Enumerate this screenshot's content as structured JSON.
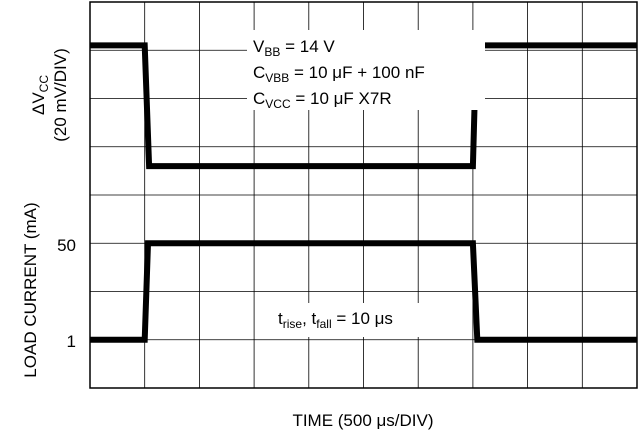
{
  "chart_data": {
    "type": "line",
    "title": "",
    "xlabel": "TIME (500 μs/DIV)",
    "divisions": {
      "x": 10,
      "y": 8
    },
    "upper_axis": {
      "label_line1": "ΔV",
      "label_line1_sub": "CC",
      "label_line2": "(20 mV/DIV)"
    },
    "lower_axis": {
      "label": "LOAD CURRENT (mA)",
      "ticks": [
        "50",
        "1"
      ],
      "tick_values": [
        50,
        1
      ]
    },
    "annotations": {
      "vbb": {
        "main": "V",
        "sub": "BB",
        "rest": " = 14 V"
      },
      "cvbb": {
        "main": "C",
        "sub": "VBB",
        "rest": " = 10 μF + 100 nF"
      },
      "cvcc": {
        "main": "C",
        "sub": "VCC",
        "rest": " = 10 μF X7R"
      },
      "trise": {
        "t1": "t",
        "s1": "rise",
        "sep": ", ",
        "t2": "t",
        "s2": "fall",
        "rest": " = 10 μs"
      }
    },
    "series": [
      {
        "name": "",
        "units": "div",
        "x": [
          0,
          1.0,
          1.08,
          7.0,
          7.06,
          10
        ],
        "y": [
          7.1,
          7.1,
          4.6,
          4.6,
          7.1,
          7.1
        ]
      },
      {
        "name": "",
        "units": "mA",
        "x": [
          0,
          1.0,
          1.06,
          7.0,
          7.08,
          10
        ],
        "y": [
          1,
          1,
          50,
          50,
          1,
          1
        ]
      }
    ]
  }
}
